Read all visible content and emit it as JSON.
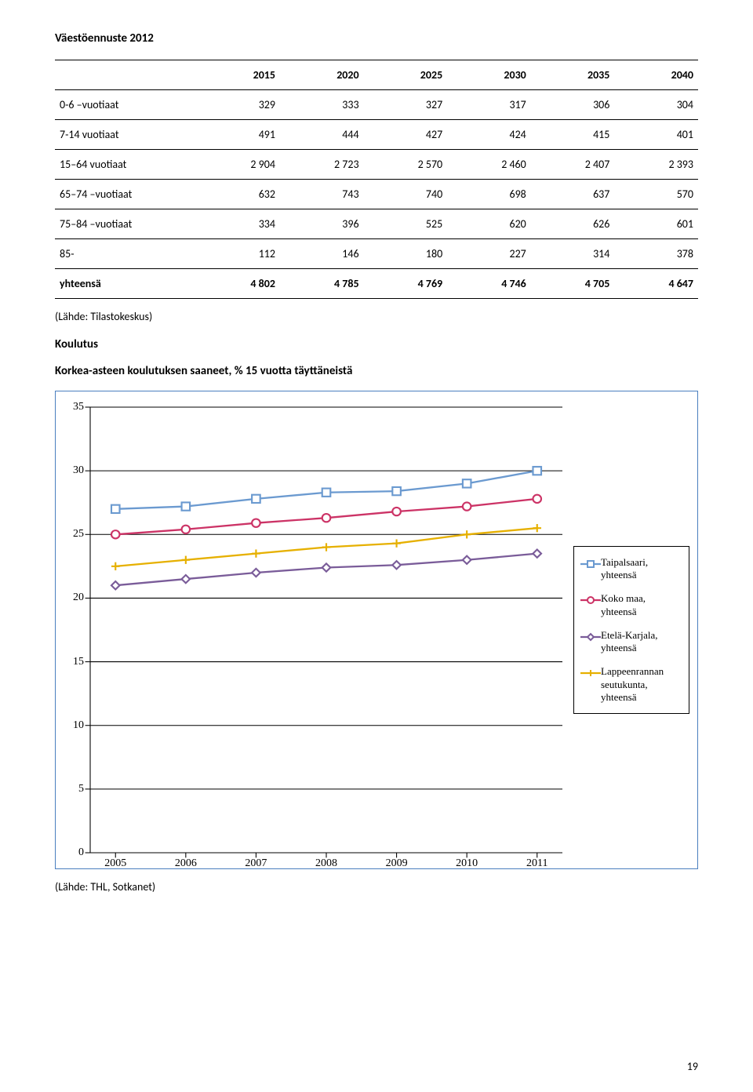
{
  "title": "Väestöennuste 2012",
  "table": {
    "headers": [
      "",
      "2015",
      "2020",
      "2025",
      "2030",
      "2035",
      "2040"
    ],
    "rows": [
      [
        "0-6 –vuotiaat",
        "329",
        "333",
        "327",
        "317",
        "306",
        "304"
      ],
      [
        "7-14 vuotiaat",
        "491",
        "444",
        "427",
        "424",
        "415",
        "401"
      ],
      [
        "15–64 vuotiaat",
        "2 904",
        "2 723",
        "2 570",
        "2 460",
        "2 407",
        "2 393"
      ],
      [
        "65–74 –vuotiaat",
        "632",
        "743",
        "740",
        "698",
        "637",
        "570"
      ],
      [
        "75–84 –vuotiaat",
        "334",
        "396",
        "525",
        "620",
        "626",
        "601"
      ],
      [
        "85-",
        "112",
        "146",
        "180",
        "227",
        "314",
        "378"
      ]
    ],
    "total": [
      "yhteensä",
      "4 802",
      "4 785",
      "4 769",
      "4 746",
      "4 705",
      "4 647"
    ]
  },
  "source1": "(Lähde: Tilastokeskus)",
  "section_heading": "Koulutus",
  "chart_title": "Korkea-asteen koulutuksen saaneet, % 15 vuotta täyttäneistä",
  "chart": {
    "type": "line",
    "ylim": [
      0,
      35
    ],
    "ytick_step": 5,
    "x_categories": [
      "2005",
      "2006",
      "2007",
      "2008",
      "2009",
      "2010",
      "2011"
    ],
    "grid_color": "#000000",
    "background_color": "#ffffff",
    "border_color": "#4a7fbf",
    "series": [
      {
        "name": "Taipalsaari, yhteensä",
        "color": "#6b9ad0",
        "marker": "square",
        "values": [
          27.0,
          27.2,
          27.8,
          28.3,
          28.4,
          29.0,
          30.0
        ]
      },
      {
        "name": "Koko maa, yhteensä",
        "color": "#cc3366",
        "marker": "circle",
        "values": [
          25.0,
          25.4,
          25.9,
          26.3,
          26.8,
          27.2,
          27.8
        ]
      },
      {
        "name": "Etelä-Karjala, yhteensä",
        "color": "#7a5c99",
        "marker": "diamond",
        "values": [
          21.0,
          21.5,
          22.0,
          22.4,
          22.6,
          23.0,
          23.5
        ]
      },
      {
        "name": "Lappeenrannan seutukunta, yhteensä",
        "color": "#e6b000",
        "marker": "plus",
        "values": [
          22.5,
          23.0,
          23.5,
          24.0,
          24.3,
          25.0,
          25.5
        ]
      }
    ],
    "line_width": 2.2,
    "marker_size": 7,
    "axis_fontsize": 14,
    "legend_fontsize": 13
  },
  "source2": "(Lähde: THL, Sotkanet)",
  "page_number": "19"
}
